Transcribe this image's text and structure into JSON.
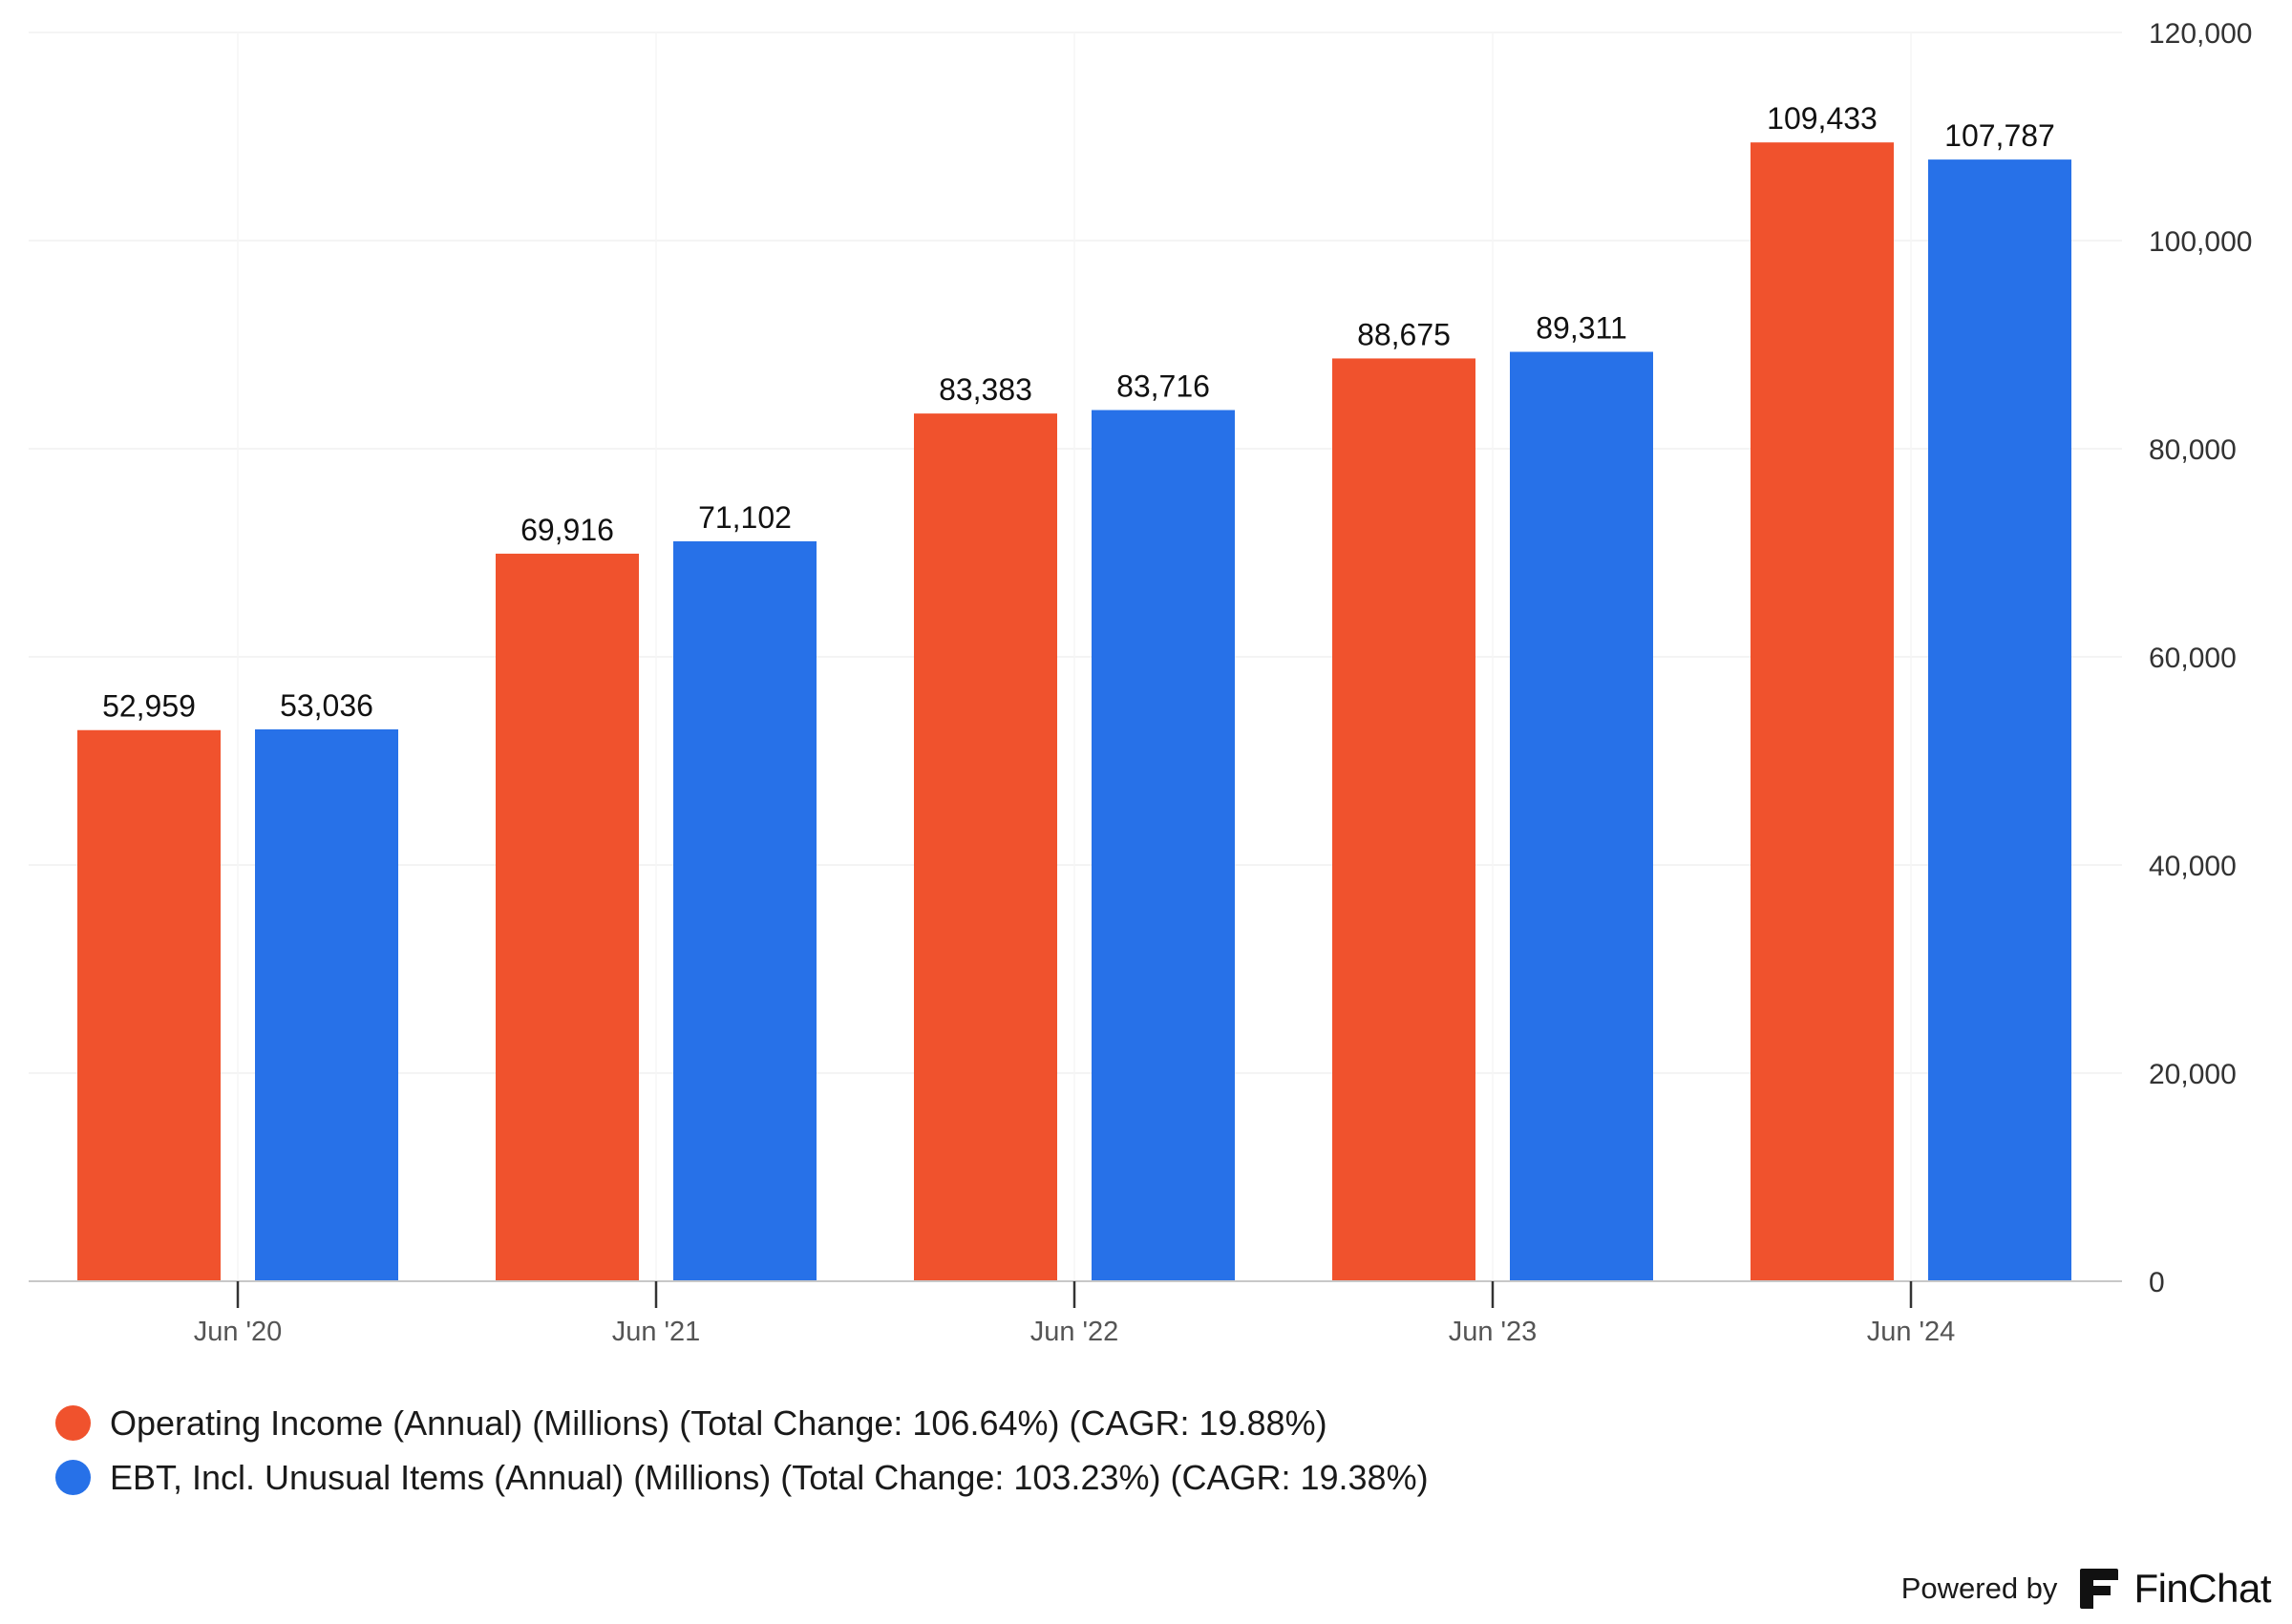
{
  "chart_data": {
    "type": "bar",
    "categories": [
      "Jun '20",
      "Jun '21",
      "Jun '22",
      "Jun '23",
      "Jun '24"
    ],
    "series": [
      {
        "name": "Operating Income (Annual) (Millions) (Total Change: 106.64%) (CAGR: 19.88%)",
        "color": "#f0522d",
        "values": [
          52959,
          69916,
          83383,
          88675,
          109433
        ],
        "labels": [
          "52,959",
          "69,916",
          "83,383",
          "88,675",
          "109,433"
        ]
      },
      {
        "name": "EBT, Incl. Unusual Items (Annual) (Millions) (Total Change: 103.23%) (CAGR: 19.38%)",
        "color": "#2771e8",
        "values": [
          53036,
          71102,
          83716,
          89311,
          107787
        ],
        "labels": [
          "53,036",
          "71,102",
          "83,716",
          "89,311",
          "107,787"
        ]
      }
    ],
    "y_ticks": [
      "0",
      "20,000",
      "40,000",
      "60,000",
      "80,000",
      "100,000",
      "120,000"
    ],
    "ylim": [
      0,
      120000
    ],
    "y_axis_side": "right",
    "grid": true,
    "legend_position": "bottom-left"
  },
  "legend": {
    "items": [
      {
        "label": "Operating Income (Annual) (Millions) (Total Change: 106.64%) (CAGR: 19.88%)",
        "color": "#f0522d"
      },
      {
        "label": "EBT, Incl. Unusual Items (Annual) (Millions) (Total Change: 103.23%) (CAGR: 19.38%)",
        "color": "#2771e8"
      }
    ]
  },
  "footer": {
    "powered_by": "Powered by",
    "brand": "FinChat"
  }
}
